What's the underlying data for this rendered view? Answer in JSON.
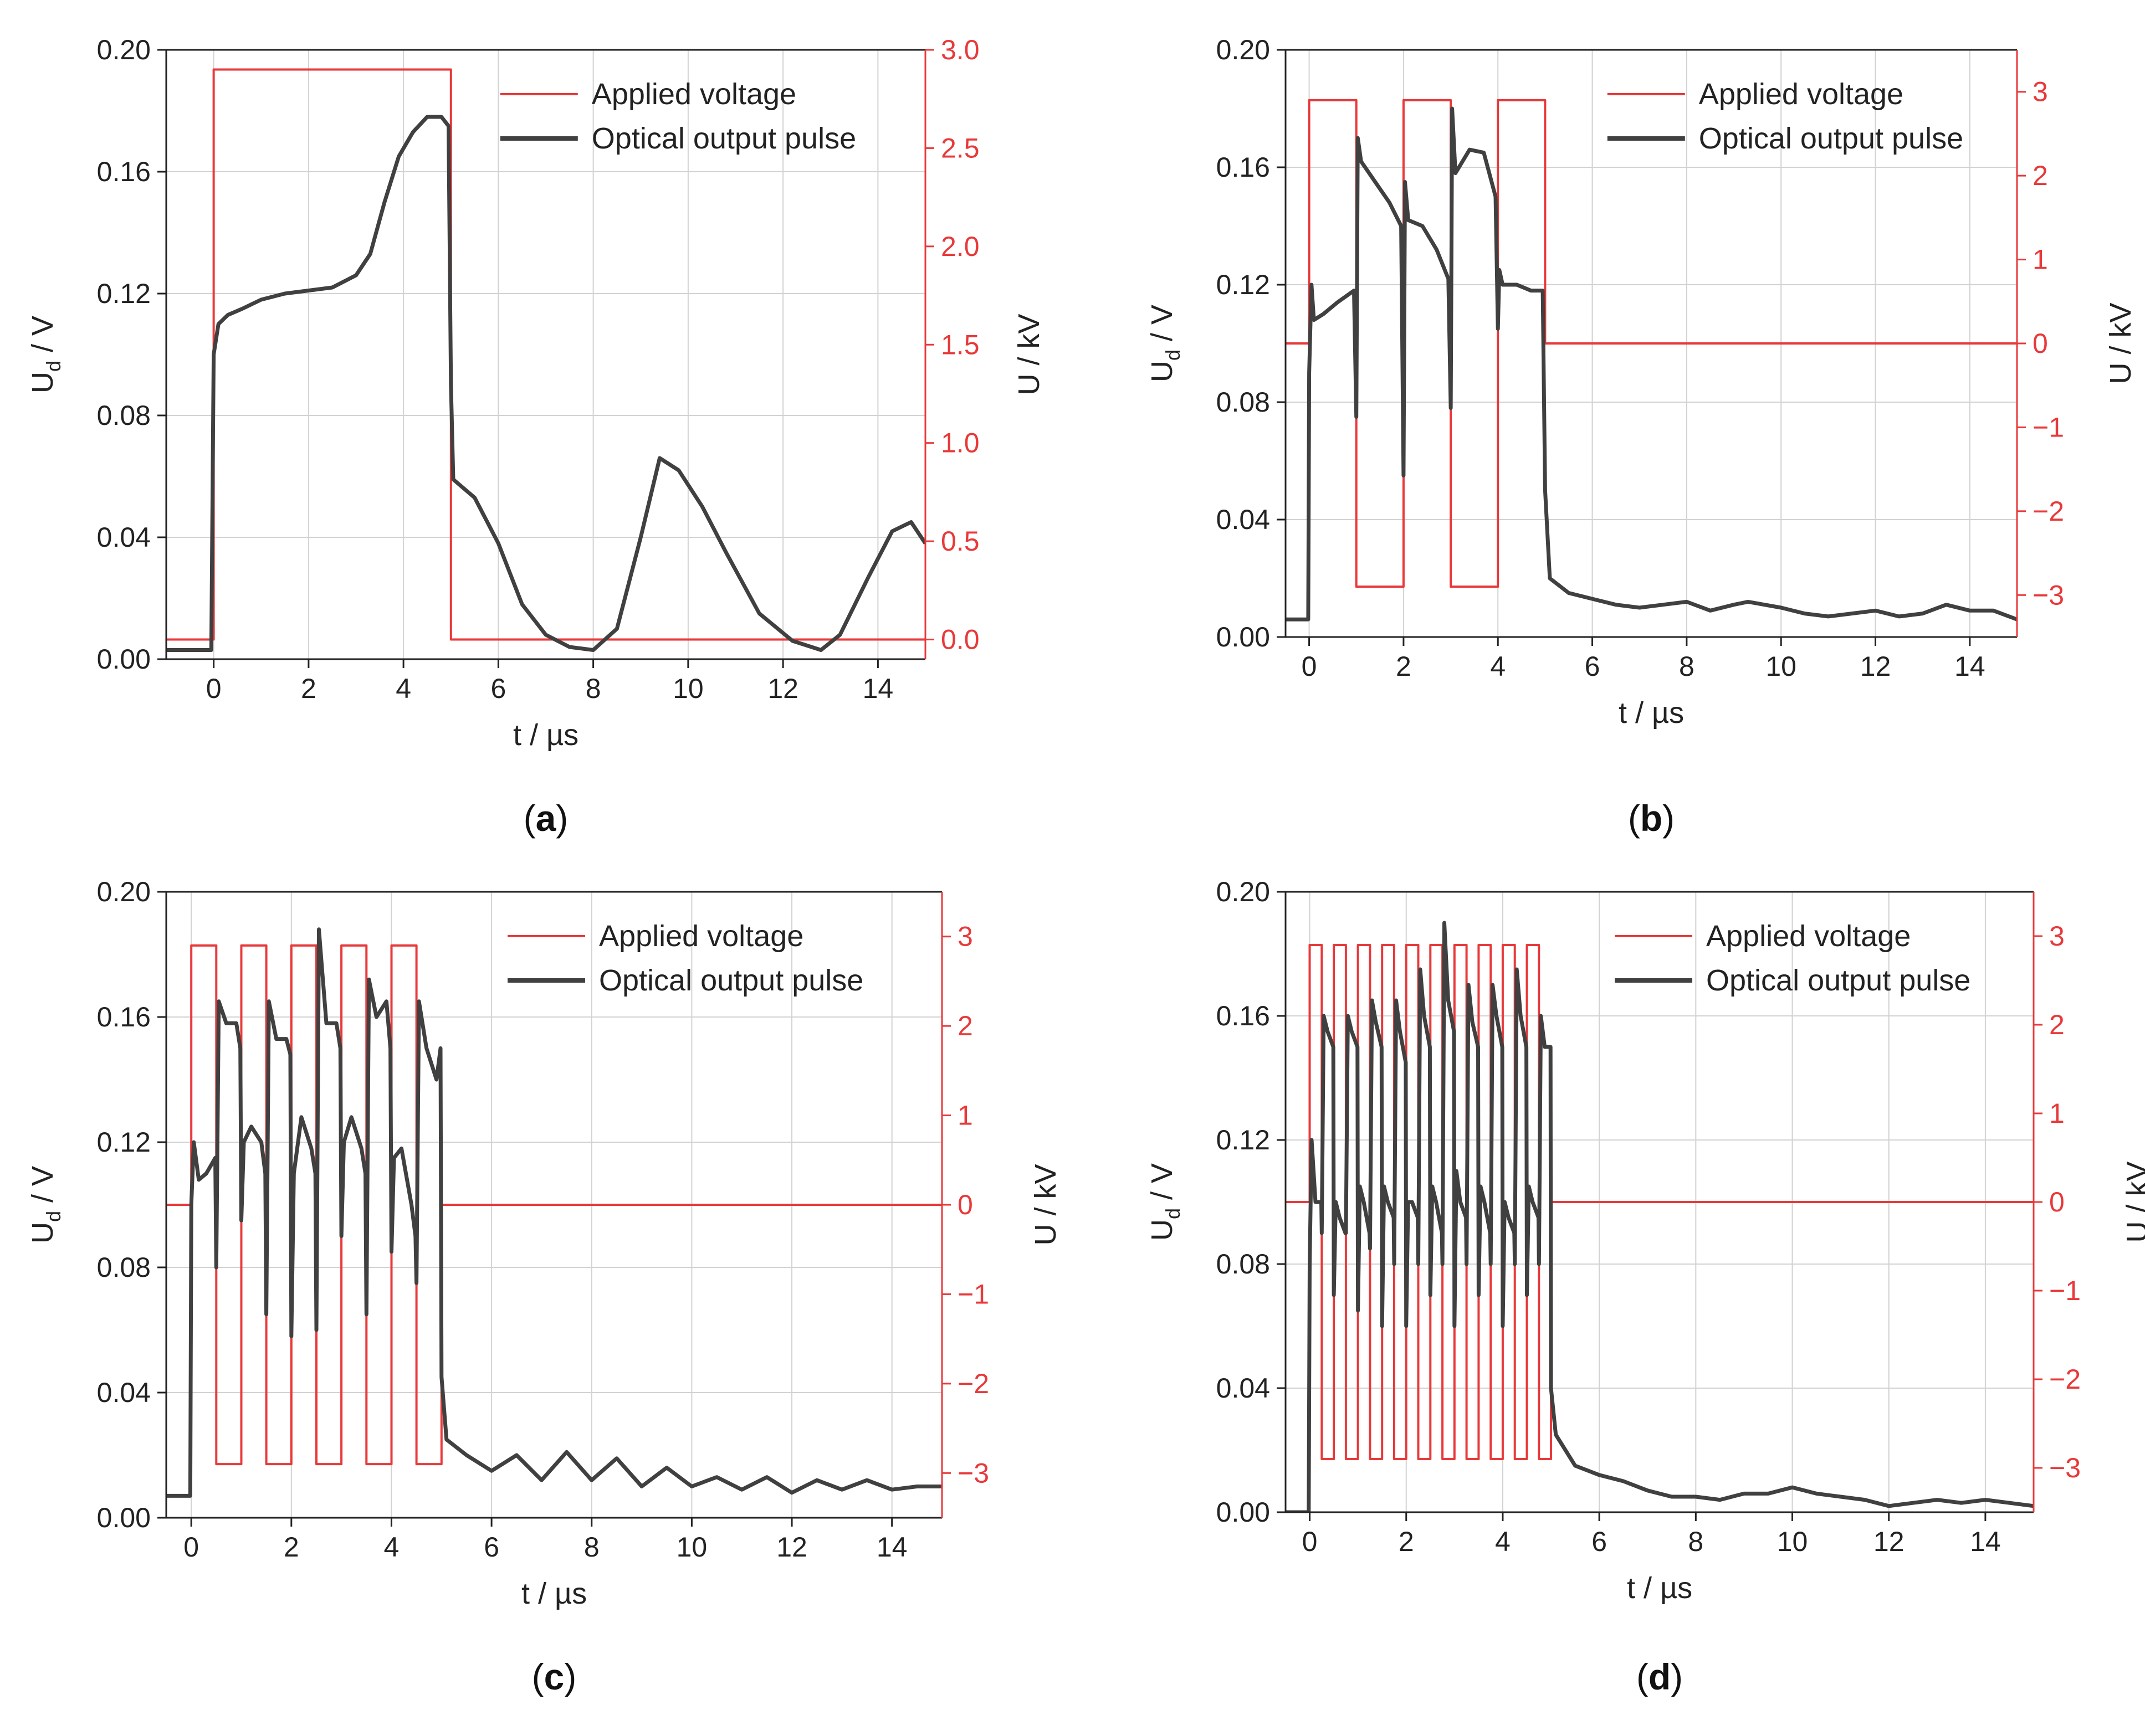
{
  "figure": {
    "voltage_color": "#e8393a",
    "signal_color": "#404040"
  },
  "chart_data": [
    {
      "type": "line",
      "panel_label": "a",
      "xlabel": "t / µs",
      "ylabel_left": "U",
      "ylabel_left_sub": "d",
      "ylabel_left_unit": " / V",
      "ylabel_right": "U / kV",
      "xlim": [
        -1,
        15
      ],
      "ylim_left": [
        0,
        0.2
      ],
      "ylim_right": [
        -0.1,
        3.0
      ],
      "x_ticks": [
        "0",
        "2",
        "4",
        "6",
        "8",
        "10",
        "12",
        "14"
      ],
      "x_tick_values": [
        0,
        2,
        4,
        6,
        8,
        10,
        12,
        14
      ],
      "y_left_ticks": [
        "0.00",
        "0.04",
        "0.08",
        "0.12",
        "0.16",
        "0.20"
      ],
      "y_left_tick_values": [
        0,
        0.04,
        0.08,
        0.12,
        0.16,
        0.2
      ],
      "y_right_ticks": [
        "0.0",
        "0.5",
        "1.0",
        "1.5",
        "2.0",
        "2.5",
        "3.0"
      ],
      "y_right_tick_values": [
        0,
        0.5,
        1.0,
        1.5,
        2.0,
        2.5,
        3.0
      ],
      "grid": true,
      "legend": [
        "Applied voltage",
        "Optical output pulse"
      ],
      "legend_position": "top-right",
      "series": [
        {
          "name": "Applied voltage",
          "axis": "right",
          "x": [
            -1,
            0,
            0,
            5,
            5,
            15
          ],
          "y": [
            0,
            0,
            2.9,
            2.9,
            0,
            0
          ]
        },
        {
          "name": "Optical output pulse",
          "axis": "left",
          "x": [
            -1,
            -0.05,
            0,
            0.1,
            0.3,
            0.6,
            1.0,
            1.5,
            2.0,
            2.5,
            3.0,
            3.3,
            3.6,
            3.9,
            4.2,
            4.5,
            4.8,
            4.95,
            5.0,
            5.05,
            5.5,
            6.0,
            6.5,
            7.0,
            7.5,
            8.0,
            8.5,
            9.0,
            9.4,
            9.8,
            10.3,
            10.8,
            11.5,
            12.2,
            12.8,
            13.2,
            13.8,
            14.3,
            14.7,
            15.0
          ],
          "y": [
            0.003,
            0.003,
            0.1,
            0.11,
            0.113,
            0.115,
            0.118,
            0.12,
            0.121,
            0.122,
            0.126,
            0.133,
            0.15,
            0.165,
            0.173,
            0.178,
            0.178,
            0.175,
            0.09,
            0.059,
            0.053,
            0.038,
            0.018,
            0.008,
            0.004,
            0.003,
            0.01,
            0.04,
            0.066,
            0.062,
            0.05,
            0.035,
            0.015,
            0.006,
            0.003,
            0.008,
            0.027,
            0.042,
            0.045,
            0.038
          ]
        }
      ]
    },
    {
      "type": "line",
      "panel_label": "b",
      "xlabel": "t / µs",
      "ylabel_left": "U",
      "ylabel_left_sub": "d",
      "ylabel_left_unit": " / V",
      "ylabel_right": "U / kV",
      "xlim": [
        -0.5,
        15
      ],
      "ylim_left": [
        0,
        0.2
      ],
      "ylim_right": [
        -3.5,
        3.5
      ],
      "x_ticks": [
        "0",
        "2",
        "4",
        "6",
        "8",
        "10",
        "12",
        "14"
      ],
      "x_tick_values": [
        0,
        2,
        4,
        6,
        8,
        10,
        12,
        14
      ],
      "y_left_ticks": [
        "0.00",
        "0.04",
        "0.08",
        "0.12",
        "0.16",
        "0.20"
      ],
      "y_left_tick_values": [
        0,
        0.04,
        0.08,
        0.12,
        0.16,
        0.2
      ],
      "y_right_ticks": [
        "−3",
        "−2",
        "−1",
        "0",
        "1",
        "2",
        "3"
      ],
      "y_right_tick_values": [
        -3,
        -2,
        -1,
        0,
        1,
        2,
        3
      ],
      "grid": true,
      "legend": [
        "Applied voltage",
        "Optical output pulse"
      ],
      "legend_position": "top-right",
      "series": [
        {
          "name": "Applied voltage",
          "axis": "right",
          "x": [
            -0.5,
            0,
            0,
            1,
            1,
            2,
            2,
            3,
            3,
            4,
            4,
            5,
            5,
            15
          ],
          "y": [
            0,
            0,
            2.9,
            2.9,
            -2.9,
            -2.9,
            2.9,
            2.9,
            -2.9,
            -2.9,
            2.9,
            2.9,
            0,
            0
          ]
        },
        {
          "name": "Optical output pulse",
          "axis": "left",
          "x": [
            -0.5,
            -0.02,
            0,
            0.05,
            0.1,
            0.3,
            0.6,
            0.95,
            1.0,
            1.03,
            1.1,
            1.4,
            1.7,
            1.95,
            2.0,
            2.03,
            2.1,
            2.4,
            2.7,
            2.95,
            3.0,
            3.03,
            3.1,
            3.4,
            3.7,
            3.95,
            4.0,
            4.03,
            4.1,
            4.4,
            4.7,
            4.95,
            5.0,
            5.1,
            5.5,
            6.0,
            6.5,
            7.0,
            7.5,
            8.0,
            8.5,
            9.0,
            9.3,
            10.0,
            10.5,
            11.0,
            11.5,
            12.0,
            12.5,
            13.0,
            13.5,
            14.0,
            14.5,
            15.0
          ],
          "y": [
            0.006,
            0.006,
            0.09,
            0.12,
            0.108,
            0.11,
            0.114,
            0.118,
            0.075,
            0.17,
            0.162,
            0.155,
            0.148,
            0.14,
            0.055,
            0.155,
            0.142,
            0.14,
            0.132,
            0.122,
            0.078,
            0.18,
            0.158,
            0.166,
            0.165,
            0.15,
            0.105,
            0.125,
            0.12,
            0.12,
            0.118,
            0.118,
            0.05,
            0.02,
            0.015,
            0.013,
            0.011,
            0.01,
            0.011,
            0.012,
            0.009,
            0.011,
            0.012,
            0.01,
            0.008,
            0.007,
            0.008,
            0.009,
            0.007,
            0.008,
            0.011,
            0.009,
            0.009,
            0.006
          ]
        }
      ]
    },
    {
      "type": "line",
      "panel_label": "c",
      "xlabel": "t / µs",
      "ylabel_left": "U",
      "ylabel_left_sub": "d",
      "ylabel_left_unit": " / V",
      "ylabel_right": "U / kV",
      "xlim": [
        -0.5,
        15
      ],
      "ylim_left": [
        0,
        0.2
      ],
      "ylim_right": [
        -3.5,
        3.5
      ],
      "x_ticks": [
        "0",
        "2",
        "4",
        "6",
        "8",
        "10",
        "12",
        "14"
      ],
      "x_tick_values": [
        0,
        2,
        4,
        6,
        8,
        10,
        12,
        14
      ],
      "y_left_ticks": [
        "0.00",
        "0.04",
        "0.08",
        "0.12",
        "0.16",
        "0.20"
      ],
      "y_left_tick_values": [
        0,
        0.04,
        0.08,
        0.12,
        0.16,
        0.2
      ],
      "y_right_ticks": [
        "−3",
        "−2",
        "−1",
        "0",
        "1",
        "2",
        "3"
      ],
      "y_right_tick_values": [
        -3,
        -2,
        -1,
        0,
        1,
        2,
        3
      ],
      "grid": true,
      "legend": [
        "Applied voltage",
        "Optical output pulse"
      ],
      "legend_position": "top-right",
      "series": [
        {
          "name": "Applied voltage",
          "axis": "right",
          "x": [
            -0.5,
            0,
            0,
            0.5,
            0.5,
            1,
            1,
            1.5,
            1.5,
            2,
            2,
            2.5,
            2.5,
            3,
            3,
            3.5,
            3.5,
            4,
            4,
            4.5,
            4.5,
            5,
            5,
            15
          ],
          "y": [
            0,
            0,
            2.9,
            2.9,
            -2.9,
            -2.9,
            2.9,
            2.9,
            -2.9,
            -2.9,
            2.9,
            2.9,
            -2.9,
            -2.9,
            2.9,
            2.9,
            -2.9,
            -2.9,
            2.9,
            2.9,
            -2.9,
            -2.9,
            0,
            0
          ]
        },
        {
          "name": "Optical output pulse",
          "axis": "left",
          "x": [
            -0.5,
            -0.02,
            0,
            0.05,
            0.15,
            0.3,
            0.48,
            0.5,
            0.55,
            0.7,
            0.9,
            0.98,
            1.0,
            1.05,
            1.2,
            1.4,
            1.48,
            1.5,
            1.55,
            1.7,
            1.9,
            1.98,
            2.0,
            2.05,
            2.2,
            2.4,
            2.48,
            2.5,
            2.55,
            2.7,
            2.9,
            2.98,
            3.0,
            3.05,
            3.2,
            3.4,
            3.48,
            3.5,
            3.55,
            3.7,
            3.9,
            3.98,
            4.0,
            4.05,
            4.2,
            4.4,
            4.48,
            4.5,
            4.55,
            4.7,
            4.9,
            4.98,
            5.0,
            5.1,
            5.5,
            6.0,
            6.5,
            7.0,
            7.5,
            8.0,
            8.5,
            9.0,
            9.5,
            10.0,
            10.5,
            11.0,
            11.5,
            12.0,
            12.5,
            13.0,
            13.5,
            14.0,
            14.5,
            15.0
          ],
          "y": [
            0.007,
            0.007,
            0.1,
            0.12,
            0.108,
            0.11,
            0.115,
            0.08,
            0.165,
            0.158,
            0.158,
            0.15,
            0.095,
            0.12,
            0.125,
            0.12,
            0.11,
            0.065,
            0.165,
            0.153,
            0.153,
            0.148,
            0.058,
            0.11,
            0.128,
            0.118,
            0.11,
            0.06,
            0.188,
            0.158,
            0.158,
            0.15,
            0.09,
            0.12,
            0.128,
            0.118,
            0.11,
            0.065,
            0.172,
            0.16,
            0.165,
            0.15,
            0.085,
            0.115,
            0.118,
            0.1,
            0.09,
            0.075,
            0.165,
            0.15,
            0.14,
            0.15,
            0.045,
            0.025,
            0.02,
            0.015,
            0.02,
            0.012,
            0.021,
            0.012,
            0.019,
            0.01,
            0.016,
            0.01,
            0.013,
            0.009,
            0.013,
            0.008,
            0.012,
            0.009,
            0.012,
            0.009,
            0.01,
            0.01
          ]
        }
      ]
    },
    {
      "type": "line",
      "panel_label": "d",
      "xlabel": "t / µs",
      "ylabel_left": "U",
      "ylabel_left_sub": "d",
      "ylabel_left_unit": " / V",
      "ylabel_right": "U / kV",
      "xlim": [
        -0.5,
        15
      ],
      "ylim_left": [
        0,
        0.2
      ],
      "ylim_right": [
        -3.5,
        3.5
      ],
      "x_ticks": [
        "0",
        "2",
        "4",
        "6",
        "8",
        "10",
        "12",
        "14"
      ],
      "x_tick_values": [
        0,
        2,
        4,
        6,
        8,
        10,
        12,
        14
      ],
      "y_left_ticks": [
        "0.00",
        "0.04",
        "0.08",
        "0.12",
        "0.16",
        "0.20"
      ],
      "y_left_tick_values": [
        0,
        0.04,
        0.08,
        0.12,
        0.16,
        0.2
      ],
      "y_right_ticks": [
        "−3",
        "−2",
        "−1",
        "0",
        "1",
        "2",
        "3"
      ],
      "y_right_tick_values": [
        -3,
        -2,
        -1,
        0,
        1,
        2,
        3
      ],
      "grid": true,
      "legend": [
        "Applied voltage",
        "Optical output pulse"
      ],
      "legend_position": "top-right",
      "series": [
        {
          "name": "Applied voltage",
          "axis": "right",
          "x": [
            -0.5,
            0,
            0,
            0.25,
            0.25,
            0.5,
            0.5,
            0.75,
            0.75,
            1.0,
            1.0,
            1.25,
            1.25,
            1.5,
            1.5,
            1.75,
            1.75,
            2.0,
            2.0,
            2.25,
            2.25,
            2.5,
            2.5,
            2.75,
            2.75,
            3.0,
            3.0,
            3.25,
            3.25,
            3.5,
            3.5,
            3.75,
            3.75,
            4.0,
            4.0,
            4.25,
            4.25,
            4.5,
            4.5,
            4.75,
            4.75,
            5.0,
            5.0,
            15
          ],
          "y": [
            0,
            0,
            2.9,
            2.9,
            -2.9,
            -2.9,
            2.9,
            2.9,
            -2.9,
            -2.9,
            2.9,
            2.9,
            -2.9,
            -2.9,
            2.9,
            2.9,
            -2.9,
            -2.9,
            2.9,
            2.9,
            -2.9,
            -2.9,
            2.9,
            2.9,
            -2.9,
            -2.9,
            2.9,
            2.9,
            -2.9,
            -2.9,
            2.9,
            2.9,
            -2.9,
            -2.9,
            2.9,
            2.9,
            -2.9,
            -2.9,
            2.9,
            2.9,
            -2.9,
            -2.9,
            0,
            0
          ]
        },
        {
          "name": "Optical output pulse",
          "axis": "left",
          "x": [
            -0.5,
            -0.02,
            0,
            0.04,
            0.12,
            0.24,
            0.25,
            0.29,
            0.37,
            0.49,
            0.5,
            0.54,
            0.62,
            0.74,
            0.75,
            0.79,
            0.87,
            0.99,
            1.0,
            1.04,
            1.12,
            1.24,
            1.25,
            1.29,
            1.37,
            1.49,
            1.5,
            1.54,
            1.62,
            1.74,
            1.75,
            1.79,
            1.87,
            1.99,
            2.0,
            2.04,
            2.12,
            2.24,
            2.25,
            2.29,
            2.37,
            2.49,
            2.5,
            2.54,
            2.62,
            2.74,
            2.75,
            2.79,
            2.87,
            2.99,
            3.0,
            3.04,
            3.12,
            3.24,
            3.25,
            3.29,
            3.37,
            3.49,
            3.5,
            3.54,
            3.62,
            3.74,
            3.75,
            3.79,
            3.87,
            3.99,
            4.0,
            4.04,
            4.12,
            4.24,
            4.25,
            4.29,
            4.37,
            4.49,
            4.5,
            4.54,
            4.62,
            4.74,
            4.75,
            4.79,
            4.87,
            4.99,
            5.0,
            5.1,
            5.5,
            6.0,
            6.5,
            7.0,
            7.5,
            8.0,
            8.5,
            9.0,
            9.5,
            10.0,
            10.5,
            11.0,
            11.5,
            12.0,
            12.5,
            13.0,
            13.5,
            14.0,
            14.5,
            15.0
          ],
          "y": [
            0.0,
            0.0,
            0.08,
            0.12,
            0.1,
            0.1,
            0.09,
            0.16,
            0.155,
            0.15,
            0.07,
            0.1,
            0.095,
            0.09,
            0.09,
            0.16,
            0.155,
            0.15,
            0.065,
            0.105,
            0.1,
            0.09,
            0.085,
            0.165,
            0.158,
            0.15,
            0.06,
            0.105,
            0.1,
            0.095,
            0.08,
            0.165,
            0.155,
            0.145,
            0.06,
            0.1,
            0.1,
            0.095,
            0.08,
            0.175,
            0.16,
            0.15,
            0.07,
            0.105,
            0.1,
            0.09,
            0.08,
            0.19,
            0.165,
            0.155,
            0.06,
            0.11,
            0.1,
            0.095,
            0.08,
            0.17,
            0.158,
            0.15,
            0.07,
            0.105,
            0.1,
            0.09,
            0.08,
            0.17,
            0.16,
            0.15,
            0.06,
            0.1,
            0.095,
            0.09,
            0.08,
            0.175,
            0.16,
            0.15,
            0.07,
            0.105,
            0.1,
            0.095,
            0.08,
            0.16,
            0.15,
            0.15,
            0.04,
            0.025,
            0.015,
            0.012,
            0.01,
            0.007,
            0.005,
            0.005,
            0.004,
            0.006,
            0.006,
            0.008,
            0.006,
            0.005,
            0.004,
            0.002,
            0.003,
            0.004,
            0.003,
            0.004,
            0.003,
            0.002
          ]
        }
      ]
    }
  ]
}
